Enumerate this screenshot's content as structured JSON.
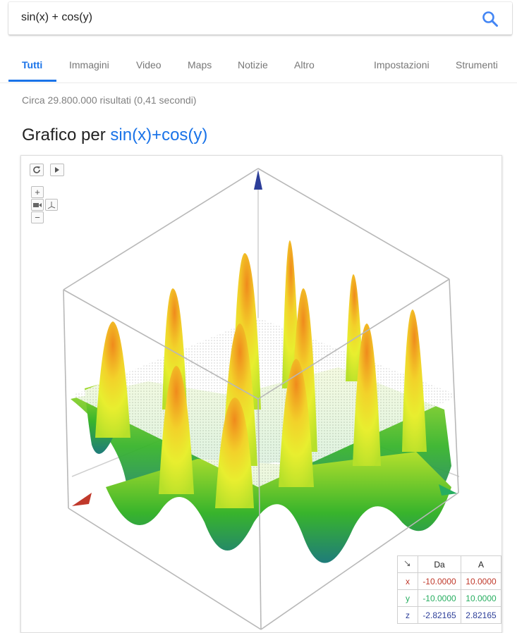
{
  "search": {
    "query": "sin(x) + cos(y)"
  },
  "tabs": [
    {
      "label": "Tutti",
      "active": true
    },
    {
      "label": "Immagini"
    },
    {
      "label": "Video"
    },
    {
      "label": "Maps"
    },
    {
      "label": "Notizie"
    },
    {
      "label": "Altro"
    },
    {
      "label": "Impostazioni"
    },
    {
      "label": "Strumenti"
    }
  ],
  "stats": "Circa 29.800.000 risultati (0,41 secondi)",
  "graph": {
    "title_prefix": "Grafico per",
    "function": "sin(x)+cos(y)",
    "controls": {
      "zoom_in": "+",
      "zoom_out": "−"
    },
    "table": {
      "header_from": "Da",
      "header_to": "A",
      "rows": [
        {
          "axis": "x",
          "from": "-10.0000",
          "to": "10.0000"
        },
        {
          "axis": "y",
          "from": "-10.0000",
          "to": "10.0000"
        },
        {
          "axis": "z",
          "from": "-2.82165",
          "to": "2.82165"
        }
      ]
    },
    "colors": {
      "axis_x": "#c0392b",
      "axis_y": "#27ae60",
      "axis_z": "#2c3e99",
      "accent": "#1a73e8"
    }
  }
}
